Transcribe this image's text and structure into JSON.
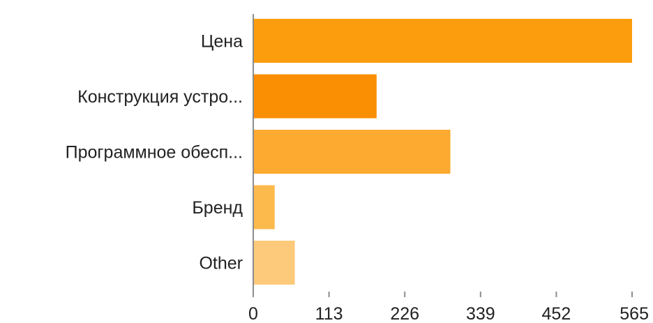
{
  "chart_data": {
    "type": "bar",
    "orientation": "horizontal",
    "title": "",
    "xlabel": "",
    "ylabel": "",
    "categories": [
      "Цена",
      "Конструкция устро...",
      "Программное обесп...",
      "Бренд",
      "Other"
    ],
    "values": [
      565,
      184,
      294,
      32,
      62
    ],
    "bar_colors": [
      "#fb9d0c",
      "#fa8f03",
      "#fcaa30",
      "#fdba4c",
      "#fdc97a"
    ],
    "xlim": [
      0,
      565
    ],
    "ticks": [
      0,
      113,
      226,
      339,
      452,
      565
    ],
    "grid": false,
    "legend": "none"
  }
}
